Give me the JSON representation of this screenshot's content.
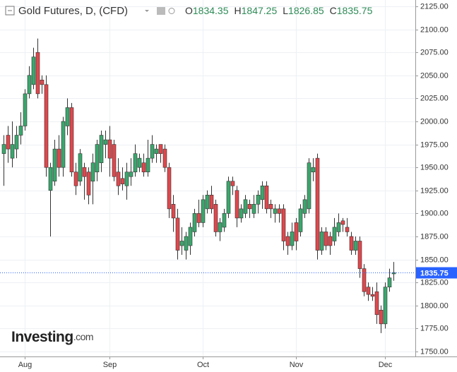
{
  "chart_data": {
    "type": "candlestick",
    "title": "Gold Futures, D, (CFD)",
    "ohlc": [
      {
        "label": "O",
        "value": 1834.35
      },
      {
        "label": "H",
        "value": 1847.25
      },
      {
        "label": "L",
        "value": 1826.85
      },
      {
        "label": "C",
        "value": 1835.75
      }
    ],
    "last_price": {
      "value": 1835.75,
      "label": "1835.75",
      "color": "#2962ff"
    },
    "watermark": [
      "Investing",
      ".com"
    ],
    "up_color": "#3aa76d",
    "down_color": "#e0474c",
    "grid": true,
    "categories": [
      null,
      null,
      null,
      null,
      null,
      "Aug",
      null,
      null,
      null,
      null,
      null,
      null,
      null,
      null,
      null,
      null,
      null,
      null,
      null,
      null,
      null,
      null,
      null,
      null,
      null,
      "Sep",
      null,
      null,
      null,
      null,
      null,
      null,
      null,
      null,
      null,
      null,
      null,
      null,
      null,
      null,
      null,
      null,
      null,
      null,
      null,
      null,
      null,
      "Oct",
      null,
      null,
      null,
      null,
      null,
      null,
      null,
      null,
      null,
      null,
      null,
      null,
      null,
      null,
      null,
      null,
      null,
      null,
      null,
      null,
      null,
      "Nov",
      null,
      null,
      null,
      null,
      null,
      null,
      null,
      null,
      null,
      null,
      null,
      null,
      null,
      null,
      null,
      null,
      null,
      null,
      null,
      null,
      "Dec",
      null,
      null
    ],
    "open": [
      1965,
      1985,
      1960,
      1970,
      1985,
      1995,
      2030,
      2040,
      2075,
      2045,
      2040,
      1925,
      1935,
      1970,
      1950,
      1995,
      2015,
      1945,
      1935,
      1950,
      1945,
      1935,
      1945,
      1955,
      1975,
      1980,
      1975,
      1945,
      1938,
      1930,
      1940,
      1945,
      1950,
      1955,
      1945,
      1960,
      1965,
      1975,
      1970,
      1950,
      1910,
      1895,
      1865,
      1860,
      1865,
      1880,
      1900,
      1890,
      1905,
      1920,
      1910,
      1880,
      1885,
      1900,
      1935,
      1925,
      1895,
      1900,
      1910,
      1900,
      1910,
      1915,
      1930,
      1910,
      1900,
      1905,
      1905,
      1875,
      1865,
      1890,
      1880,
      1900,
      1905,
      1945,
      1960,
      1860,
      1880,
      1875,
      1870,
      1880,
      1892,
      1885,
      1875,
      1860,
      1870,
      1840,
      1820,
      1812,
      1815,
      1795,
      1780,
      1820,
      1834.35
    ],
    "high": [
      1985,
      1995,
      2000,
      1995,
      2010,
      2035,
      2060,
      2080,
      2090,
      2050,
      2050,
      1955,
      1980,
      1985,
      2005,
      2025,
      2020,
      1955,
      1970,
      1955,
      1950,
      1965,
      1980,
      1990,
      1990,
      1995,
      1980,
      1960,
      1950,
      1955,
      1960,
      1975,
      1965,
      1965,
      1980,
      1985,
      1975,
      1975,
      1975,
      1955,
      1920,
      1905,
      1885,
      1880,
      1890,
      1905,
      1915,
      1920,
      1925,
      1930,
      1915,
      1895,
      1905,
      1940,
      1940,
      1930,
      1910,
      1920,
      1915,
      1920,
      1925,
      1935,
      1935,
      1915,
      1910,
      1910,
      1910,
      1880,
      1890,
      1895,
      1910,
      1920,
      1960,
      1960,
      1965,
      1885,
      1885,
      1880,
      1895,
      1900,
      1895,
      1895,
      1880,
      1875,
      1875,
      1845,
      1825,
      1820,
      1825,
      1800,
      1825,
      1840,
      1847.25
    ],
    "low": [
      1930,
      1955,
      1950,
      1960,
      1975,
      1990,
      2025,
      2035,
      2025,
      2030,
      1940,
      1875,
      1930,
      1940,
      1940,
      1985,
      1940,
      1920,
      1930,
      1915,
      1910,
      1910,
      1935,
      1945,
      1960,
      1940,
      1935,
      1920,
      1925,
      1915,
      1930,
      1940,
      1945,
      1940,
      1940,
      1955,
      1955,
      1955,
      1945,
      1895,
      1880,
      1850,
      1855,
      1850,
      1855,
      1875,
      1885,
      1885,
      1900,
      1900,
      1875,
      1870,
      1880,
      1895,
      1920,
      1885,
      1890,
      1895,
      1895,
      1895,
      1900,
      1905,
      1900,
      1895,
      1890,
      1890,
      1860,
      1855,
      1860,
      1860,
      1875,
      1895,
      1900,
      1935,
      1850,
      1855,
      1860,
      1855,
      1865,
      1875,
      1880,
      1875,
      1855,
      1855,
      1830,
      1810,
      1805,
      1805,
      1780,
      1770,
      1775,
      1815,
      1826.85
    ],
    "close": [
      1975,
      1970,
      1975,
      1985,
      1995,
      2030,
      2050,
      2070,
      2030,
      2040,
      1950,
      1950,
      1970,
      1950,
      2000,
      2015,
      1945,
      1930,
      1965,
      1940,
      1920,
      1955,
      1975,
      1985,
      1980,
      1960,
      1940,
      1930,
      1932,
      1945,
      1945,
      1965,
      1960,
      1945,
      1960,
      1975,
      1970,
      1965,
      1950,
      1905,
      1895,
      1860,
      1870,
      1875,
      1885,
      1900,
      1890,
      1915,
      1920,
      1905,
      1880,
      1890,
      1900,
      1935,
      1930,
      1895,
      1905,
      1915,
      1905,
      1910,
      1920,
      1930,
      1905,
      1905,
      1905,
      1900,
      1870,
      1865,
      1880,
      1870,
      1905,
      1915,
      1955,
      1950,
      1860,
      1880,
      1865,
      1865,
      1885,
      1890,
      1888,
      1880,
      1860,
      1870,
      1840,
      1815,
      1812,
      1810,
      1790,
      1780,
      1820,
      1830,
      1835.75
    ],
    "ylim": [
      1744.6,
      2131.9
    ],
    "yticks": [
      {
        "value": 1750,
        "label": "1750.00"
      },
      {
        "value": 1775,
        "label": "1775.00"
      },
      {
        "value": 1800,
        "label": "1800.00"
      },
      {
        "value": 1825,
        "label": "1825.00"
      },
      {
        "value": 1850,
        "label": "1850.00"
      },
      {
        "value": 1875,
        "label": "1875.00"
      },
      {
        "value": 1900,
        "label": "1900.00"
      },
      {
        "value": 1925,
        "label": "1925.00"
      },
      {
        "value": 1950,
        "label": "1950.00"
      },
      {
        "value": 1975,
        "label": "1975.00"
      },
      {
        "value": 2000,
        "label": "2000.00"
      },
      {
        "value": 2025,
        "label": "2025.00"
      },
      {
        "value": 2050,
        "label": "2050.00"
      },
      {
        "value": 2075,
        "label": "2075.00"
      },
      {
        "value": 2100,
        "label": "2100.00"
      },
      {
        "value": 2125,
        "label": "2125.00"
      }
    ]
  }
}
